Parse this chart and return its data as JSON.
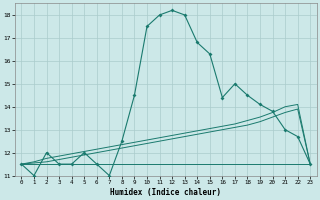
{
  "x": [
    0,
    1,
    2,
    3,
    4,
    5,
    6,
    7,
    8,
    9,
    10,
    11,
    12,
    13,
    14,
    15,
    16,
    17,
    18,
    19,
    20,
    21,
    22,
    23
  ],
  "main_curve": [
    11.5,
    11.0,
    12.0,
    11.5,
    11.5,
    12.0,
    11.5,
    11.0,
    12.5,
    14.5,
    17.5,
    18.0,
    18.2,
    18.0,
    16.8,
    16.3,
    14.4,
    15.0,
    14.5,
    14.1,
    13.8,
    13.0,
    12.7,
    11.5
  ],
  "line1": [
    11.5,
    11.6,
    11.75,
    11.85,
    11.95,
    12.05,
    12.15,
    12.25,
    12.35,
    12.45,
    12.55,
    12.65,
    12.75,
    12.85,
    12.95,
    13.05,
    13.15,
    13.25,
    13.4,
    13.55,
    13.75,
    14.0,
    14.1,
    11.5
  ],
  "line2": [
    11.5,
    11.55,
    11.6,
    11.7,
    11.8,
    11.9,
    12.0,
    12.1,
    12.2,
    12.3,
    12.4,
    12.5,
    12.6,
    12.7,
    12.8,
    12.9,
    13.0,
    13.1,
    13.2,
    13.35,
    13.55,
    13.75,
    13.9,
    11.5
  ],
  "line3": [
    11.5,
    11.5,
    11.5,
    11.5,
    11.5,
    11.5,
    11.5,
    11.5,
    11.5,
    11.5,
    11.5,
    11.5,
    11.5,
    11.5,
    11.5,
    11.5,
    11.5,
    11.5,
    11.5,
    11.5,
    11.5,
    11.5,
    11.5,
    11.5
  ],
  "line_color": "#1a7a6e",
  "bg_color": "#cce8e8",
  "grid_color": "#aacccc",
  "xlabel": "Humidex (Indice chaleur)",
  "ylim": [
    11,
    18.5
  ],
  "xlim": [
    -0.5,
    23.5
  ],
  "yticks": [
    11,
    12,
    13,
    14,
    15,
    16,
    17,
    18
  ],
  "xticks": [
    0,
    1,
    2,
    3,
    4,
    5,
    6,
    7,
    8,
    9,
    10,
    11,
    12,
    13,
    14,
    15,
    16,
    17,
    18,
    19,
    20,
    21,
    22,
    23
  ]
}
